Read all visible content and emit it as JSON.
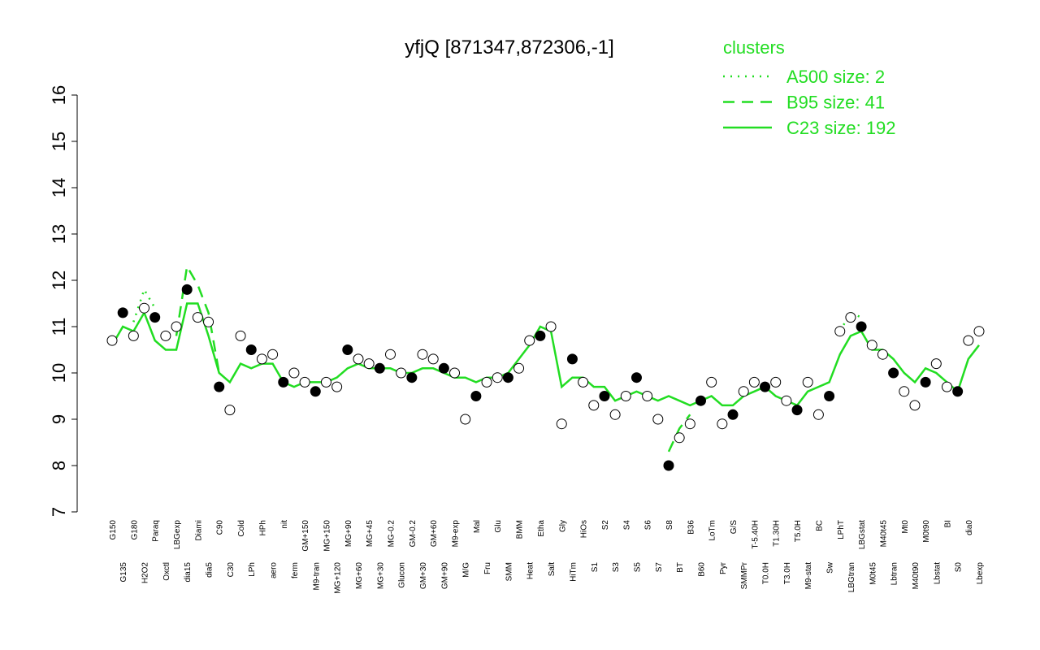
{
  "chart_data": {
    "type": "line",
    "title": "yfjQ [871347,872306,-1]",
    "legend_title": "clusters",
    "ylim": [
      7,
      16
    ],
    "yticks": [
      7,
      8,
      9,
      10,
      11,
      12,
      13,
      14,
      15,
      16
    ],
    "categories": [
      "G150",
      "G135",
      "G180",
      "H2O2",
      "Paraq",
      "Oxctl",
      "LBGexp",
      "dia15",
      "Diami",
      "dia5",
      "C90",
      "C30",
      "Cold",
      "LPh",
      "HPh",
      "aero",
      "nit",
      "ferm",
      "GM+150",
      "M9-tran",
      "MG+150",
      "MG+120",
      "MG+90",
      "MG+60",
      "MG+45",
      "MG+30",
      "MG-0.2",
      "Glucon",
      "GM-0.2",
      "GM+30",
      "GM+60",
      "GM+90",
      "M9-exp",
      "M/G",
      "Mal",
      "Fru",
      "Glu",
      "SMM",
      "BMM",
      "Heat",
      "Etha",
      "Salt",
      "Gly",
      "HiTm",
      "HiOs",
      "S1",
      "S2",
      "S3",
      "S4",
      "S5",
      "S6",
      "S7",
      "S8",
      "BT",
      "B36",
      "B60",
      "LoTm",
      "Pyr",
      "G/S",
      "SMMPr",
      "T-5.40H",
      "T0.0H",
      "T1.30H",
      "T3.0H",
      "T5.0H",
      "M9-stat",
      "BC",
      "Sw",
      "LPhT",
      "LBGtran",
      "LBGstat",
      "M0t45",
      "M40t45",
      "Lbtran",
      "Mt0",
      "M40t90",
      "M0t90",
      "Lbstat",
      "BI",
      "S0",
      "dia0",
      "Lbexp"
    ],
    "values": [
      10.7,
      11.3,
      10.8,
      11.4,
      11.2,
      10.8,
      11.0,
      11.8,
      11.2,
      11.1,
      9.7,
      9.2,
      10.8,
      10.5,
      10.3,
      10.4,
      9.8,
      10.0,
      9.8,
      9.6,
      9.8,
      9.7,
      10.5,
      10.3,
      10.2,
      10.1,
      10.4,
      10.0,
      9.9,
      10.4,
      10.3,
      10.1,
      10.0,
      9.0,
      9.5,
      9.8,
      9.9,
      9.9,
      10.1,
      10.7,
      10.8,
      11.0,
      8.9,
      10.3,
      9.8,
      9.3,
      9.5,
      9.1,
      9.5,
      9.9,
      9.5,
      9.0,
      8.0,
      8.6,
      8.9,
      9.4,
      9.8,
      8.9,
      9.1,
      9.6,
      9.8,
      9.7,
      9.8,
      9.4,
      9.2,
      9.8,
      9.1,
      9.5,
      10.9,
      11.2,
      11.0,
      10.6,
      10.4,
      10.0,
      9.6,
      9.3,
      9.8,
      10.2,
      9.7,
      9.6,
      10.7,
      10.9
    ],
    "series": [
      {
        "name": "A500 size: 2",
        "color": "#22dd22",
        "dash": "dotted",
        "values": [
          null,
          null,
          11.1,
          11.8,
          11.4,
          null,
          null,
          null,
          null,
          null,
          null,
          null,
          null,
          null,
          null,
          null,
          null,
          null,
          null,
          null,
          null,
          null,
          null,
          null,
          null,
          null,
          null,
          null,
          null,
          null,
          null,
          null,
          null,
          null,
          null,
          null,
          null,
          null,
          null,
          null,
          null,
          null,
          null,
          null,
          null,
          null,
          null,
          null,
          null,
          null,
          null,
          null,
          null,
          null,
          null,
          null,
          null,
          null,
          null,
          null,
          null,
          null,
          null,
          null,
          null,
          null,
          null,
          null,
          10.9,
          11.3,
          11.2,
          null,
          null,
          null,
          null,
          null,
          null,
          null,
          null,
          null,
          null,
          null
        ]
      },
      {
        "name": "B95 size: 41",
        "color": "#22dd22",
        "dash": "dashed",
        "values": [
          null,
          null,
          null,
          null,
          null,
          null,
          10.8,
          12.3,
          11.9,
          11.3,
          10.0,
          null,
          null,
          null,
          null,
          null,
          null,
          null,
          null,
          null,
          null,
          null,
          null,
          null,
          null,
          null,
          null,
          null,
          null,
          null,
          null,
          null,
          null,
          null,
          null,
          null,
          null,
          null,
          null,
          null,
          null,
          null,
          null,
          null,
          null,
          null,
          null,
          null,
          null,
          null,
          null,
          null,
          8.3,
          8.8,
          9.1,
          null,
          null,
          null,
          null,
          null,
          null,
          null,
          null,
          null,
          null,
          null,
          null,
          null,
          null,
          null,
          null,
          null,
          null,
          null,
          null,
          null,
          null,
          null,
          null,
          null,
          null,
          null
        ]
      },
      {
        "name": "C23 size: 192",
        "color": "#22dd22",
        "dash": "solid",
        "values": [
          10.6,
          11.0,
          10.9,
          11.3,
          10.7,
          10.5,
          10.5,
          11.5,
          11.5,
          10.8,
          10.0,
          9.8,
          10.2,
          10.1,
          10.2,
          10.2,
          9.8,
          9.7,
          9.8,
          9.8,
          9.8,
          9.9,
          10.1,
          10.2,
          10.1,
          10.1,
          10.1,
          10.0,
          10.0,
          10.1,
          10.1,
          10.0,
          9.9,
          9.9,
          9.8,
          9.9,
          9.9,
          10.0,
          10.3,
          10.6,
          11.0,
          10.9,
          9.7,
          9.9,
          9.9,
          9.7,
          9.7,
          9.4,
          9.5,
          9.6,
          9.5,
          9.4,
          9.5,
          9.4,
          9.3,
          9.4,
          9.5,
          9.3,
          9.3,
          9.5,
          9.6,
          9.7,
          9.5,
          9.4,
          9.3,
          9.6,
          9.7,
          9.8,
          10.4,
          10.8,
          10.9,
          10.5,
          10.5,
          10.3,
          10.0,
          9.8,
          10.1,
          10.0,
          9.8,
          9.6,
          10.3,
          10.6
        ]
      }
    ]
  }
}
